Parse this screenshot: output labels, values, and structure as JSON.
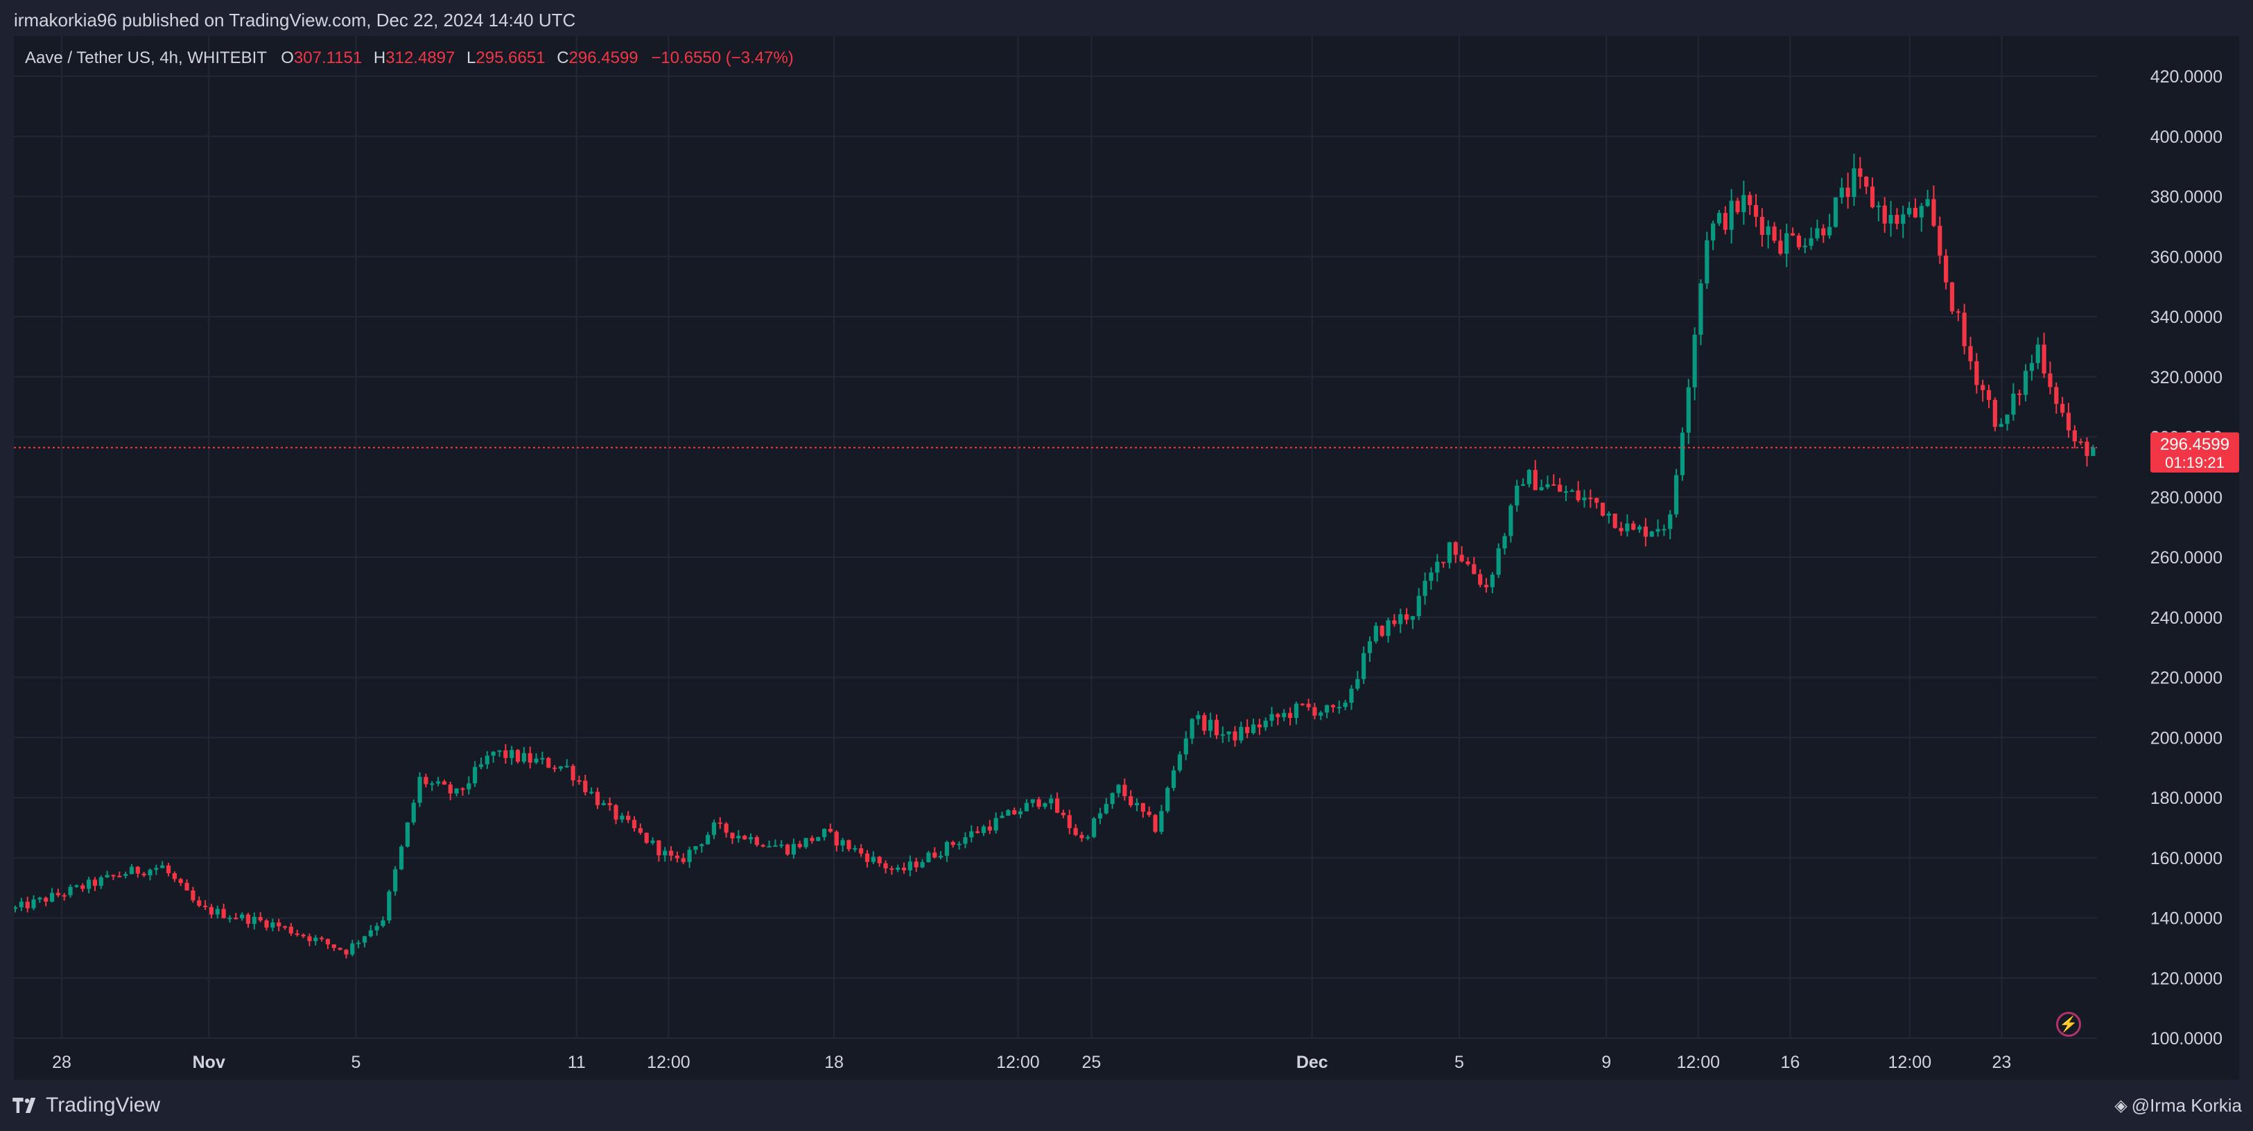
{
  "header": {
    "publish_text": "irmakorkia96 published on TradingView.com, Dec 22, 2024 14:40 UTC"
  },
  "legend": {
    "symbol": "Aave / Tether US, 4h, WHITEBIT",
    "open_label": "O",
    "open": "307.1151",
    "high_label": "H",
    "high": "312.4897",
    "low_label": "L",
    "low": "295.6651",
    "close_label": "C",
    "close": "296.4599",
    "change": "−10.6550 (−3.47%)"
  },
  "price_tag": {
    "price": "296.4599",
    "countdown": "01:19:21"
  },
  "footer": {
    "brand": "TradingView",
    "author": "@Irma Korkia"
  },
  "colors": {
    "up": "#089981",
    "down": "#f23645",
    "background": "#161a25",
    "grid": "#232735"
  },
  "chart_data": {
    "type": "candlestick",
    "title": "Aave / Tether US, 4h, WHITEBIT",
    "ylim": [
      100,
      420
    ],
    "y_ticks": [
      "100.0000",
      "120.0000",
      "140.0000",
      "160.0000",
      "180.0000",
      "200.0000",
      "220.0000",
      "240.0000",
      "260.0000",
      "280.0000",
      "300.0000",
      "320.0000",
      "340.0000",
      "360.0000",
      "380.0000",
      "400.0000",
      "420.0000"
    ],
    "x_tick_labels": [
      "28",
      "Nov",
      "5",
      "11",
      "12:00",
      "18",
      "12:00",
      "25",
      "Dec",
      "5",
      "9",
      "12:00",
      "16",
      "12:00",
      "23"
    ],
    "bold_ticks": [
      "Nov",
      "Dec"
    ],
    "last_price": 296.4599,
    "grid": true,
    "approx_close_path": [
      {
        "x": "2024-10-27",
        "y": 143
      },
      {
        "x": "2024-10-30",
        "y": 155
      },
      {
        "x": "2024-10-31",
        "y": 157
      },
      {
        "x": "2024-11-01",
        "y": 143
      },
      {
        "x": "2024-11-03",
        "y": 138
      },
      {
        "x": "2024-11-05",
        "y": 129
      },
      {
        "x": "2024-11-06",
        "y": 140
      },
      {
        "x": "2024-11-07",
        "y": 186
      },
      {
        "x": "2024-11-08",
        "y": 181
      },
      {
        "x": "2024-11-09",
        "y": 195
      },
      {
        "x": "2024-11-11",
        "y": 190
      },
      {
        "x": "2024-11-12",
        "y": 177
      },
      {
        "x": "2024-11-14",
        "y": 158
      },
      {
        "x": "2024-11-15",
        "y": 170
      },
      {
        "x": "2024-11-17",
        "y": 163
      },
      {
        "x": "2024-11-18",
        "y": 168
      },
      {
        "x": "2024-11-20",
        "y": 155
      },
      {
        "x": "2024-11-22",
        "y": 168
      },
      {
        "x": "2024-11-24",
        "y": 180
      },
      {
        "x": "2024-11-25",
        "y": 166
      },
      {
        "x": "2024-11-26",
        "y": 183
      },
      {
        "x": "2024-11-27",
        "y": 170
      },
      {
        "x": "2024-11-28",
        "y": 207
      },
      {
        "x": "2024-11-29",
        "y": 200
      },
      {
        "x": "2024-12-01",
        "y": 210
      },
      {
        "x": "2024-12-02",
        "y": 208
      },
      {
        "x": "2024-12-03",
        "y": 235
      },
      {
        "x": "2024-12-04",
        "y": 242
      },
      {
        "x": "2024-12-05",
        "y": 265
      },
      {
        "x": "2024-12-06",
        "y": 250
      },
      {
        "x": "2024-12-07",
        "y": 287
      },
      {
        "x": "2024-12-08",
        "y": 282
      },
      {
        "x": "2024-12-09",
        "y": 278
      },
      {
        "x": "2024-12-10",
        "y": 268
      },
      {
        "x": "2024-12-11",
        "y": 272
      },
      {
        "x": "2024-12-12",
        "y": 368
      },
      {
        "x": "2024-12-13",
        "y": 378
      },
      {
        "x": "2024-12-14",
        "y": 365
      },
      {
        "x": "2024-12-15",
        "y": 368
      },
      {
        "x": "2024-12-16",
        "y": 385
      },
      {
        "x": "2024-12-17",
        "y": 372
      },
      {
        "x": "2024-12-18",
        "y": 375
      },
      {
        "x": "2024-12-19",
        "y": 330
      },
      {
        "x": "2024-12-20",
        "y": 302
      },
      {
        "x": "2024-12-21",
        "y": 330
      },
      {
        "x": "2024-12-22",
        "y": 296.46
      }
    ]
  }
}
